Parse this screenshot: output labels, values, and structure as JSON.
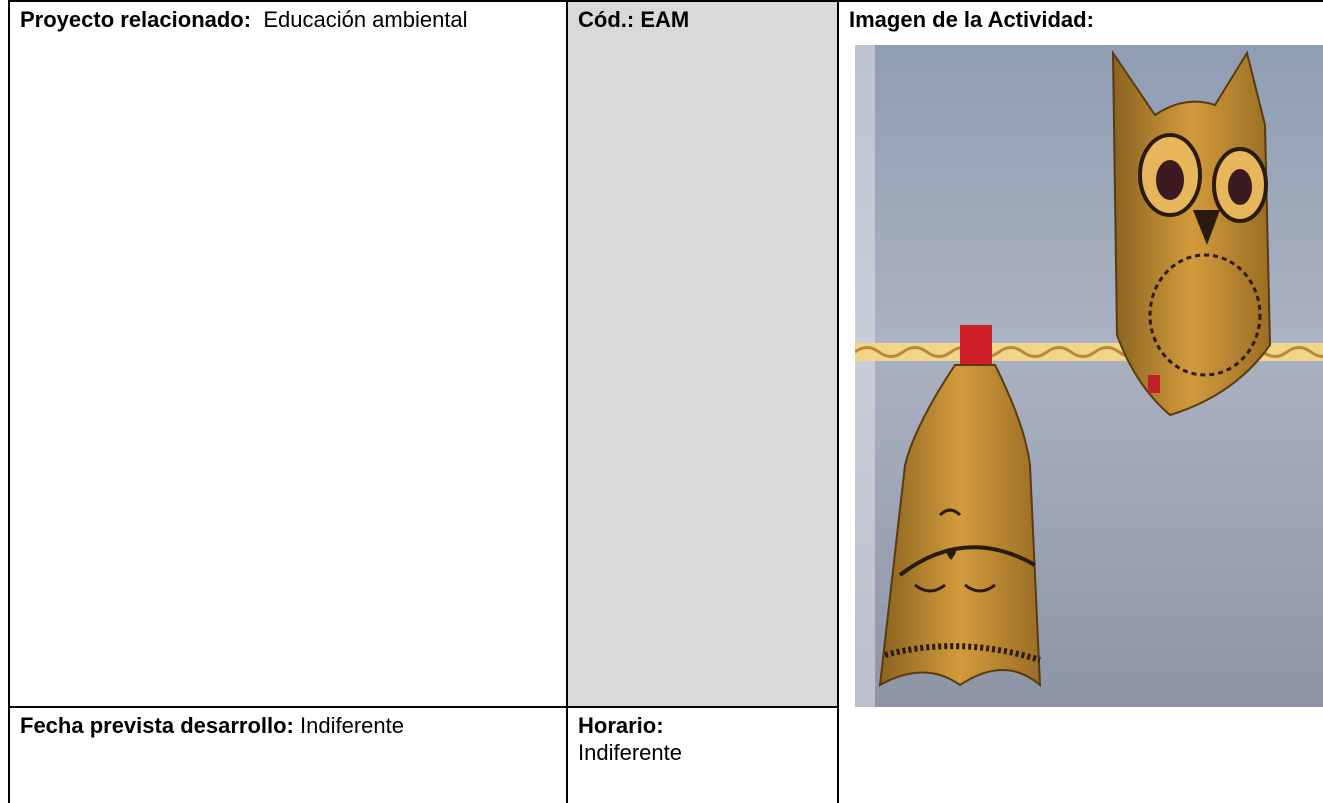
{
  "table": {
    "rows": [
      [
        {
          "label": "Proyecto relacionado:",
          "value": "Educación ambiental"
        },
        {
          "label": "Cód.:",
          "value": "EAM"
        },
        {
          "label": "Imagen de la Actividad:"
        }
      ],
      [
        {
          "label": "Fecha prevista desarrollo:",
          "value": "Indiferente"
        },
        {
          "label": "Horario:",
          "value": "Indiferente"
        }
      ]
    ]
  }
}
